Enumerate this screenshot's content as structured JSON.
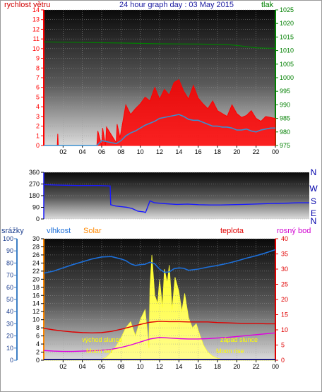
{
  "colors": {
    "wind": "#ff0000",
    "gust": "#ff0000",
    "wind_avg": "#3a8fd0",
    "pressure": "#008000",
    "direction": "#1a1aff",
    "compass": "#0000aa",
    "rain": "#3d7fc5",
    "humidity": "#1d6fd8",
    "solar": "#ffff33",
    "temperature": "#e00000",
    "dewpoint": "#e000e0",
    "axis_orange": "#ff8800",
    "grid": "#9a9a9a"
  },
  "chart_data": [
    {
      "type": "line",
      "title": "24 hour graph day : 03 May 2015",
      "left_label": "rychlost větru",
      "right_label": "tlak",
      "x_ticks": [
        "02",
        "04",
        "06",
        "08",
        "10",
        "12",
        "14",
        "16",
        "18",
        "20",
        "22",
        "00"
      ],
      "x_range_hours": [
        0,
        24
      ],
      "ylim_left": [
        0,
        14
      ],
      "left_ticks": [
        "0",
        "1",
        "2",
        "3",
        "4",
        "5",
        "6",
        "7",
        "8",
        "9",
        "10",
        "11",
        "12",
        "13",
        "14"
      ],
      "ylim_right": [
        975,
        1025
      ],
      "right_ticks": [
        "975",
        "980",
        "985",
        "990",
        "995",
        "1000",
        "1005",
        "1010",
        "1015",
        "1020",
        "1025"
      ],
      "series": [
        {
          "axis": "right",
          "x_hours": [
            0,
            4,
            8,
            12,
            16,
            19,
            20,
            22,
            24
          ],
          "values": [
            1013.2,
            1013.0,
            1012.8,
            1012.5,
            1012.4,
            1012.2,
            1011.9,
            1011.0,
            1010.8
          ]
        },
        {
          "axis": "left",
          "x_hours": [
            0,
            1.4,
            1.45,
            1.5,
            5.5,
            5.6,
            6.0,
            6.1,
            6.4,
            6.5,
            7.5,
            7.6,
            7.9,
            8.2,
            8.5,
            9,
            9.5,
            10,
            10.5,
            11,
            11.5,
            12,
            12.5,
            13,
            13.5,
            14,
            14.5,
            15,
            15.5,
            16,
            16.5,
            17,
            17.5,
            18,
            18.5,
            19,
            19.5,
            20,
            20.5,
            21,
            21.5,
            22,
            22.5,
            23,
            23.5,
            24
          ],
          "values": [
            0,
            0,
            1.2,
            0,
            0,
            1.5,
            0,
            1.8,
            0,
            1.9,
            0.3,
            2.2,
            0.8,
            2.5,
            4.2,
            3.2,
            3.8,
            4.3,
            5.0,
            4.6,
            6.0,
            4.8,
            5.8,
            5.2,
            6.5,
            6.8,
            5.6,
            4.8,
            6.2,
            4.9,
            4.3,
            3.8,
            4.6,
            3.6,
            3.3,
            3.0,
            4.2,
            3.3,
            2.9,
            3.1,
            3.6,
            2.8,
            2.5,
            3.0,
            2.9,
            2.8
          ]
        },
        {
          "axis": "left",
          "x_hours": [
            0,
            5.5,
            6.0,
            6.5,
            7.5,
            8.0,
            8.5,
            9,
            9.5,
            10,
            10.5,
            11,
            11.5,
            12,
            12.5,
            13,
            13.5,
            14,
            14.5,
            15,
            15.5,
            16,
            16.5,
            17,
            17.5,
            18,
            18.5,
            19,
            19.5,
            20,
            20.5,
            21,
            21.5,
            22,
            22.5,
            23,
            23.5,
            24
          ],
          "values": [
            0,
            0,
            0.5,
            0.4,
            0.2,
            0.5,
            1.0,
            1.3,
            1.5,
            1.8,
            2.1,
            2.3,
            2.5,
            2.8,
            2.9,
            3.0,
            3.1,
            3.2,
            3.0,
            2.7,
            2.6,
            2.6,
            2.4,
            2.2,
            2.0,
            2.0,
            1.9,
            1.9,
            1.8,
            1.6,
            1.6,
            1.7,
            1.5,
            1.4,
            1.6,
            1.7,
            1.8,
            1.8
          ]
        }
      ]
    },
    {
      "type": "line",
      "ylim": [
        0,
        360
      ],
      "y_ticks": [
        "0",
        "90",
        "180",
        "270",
        "360"
      ],
      "compass_labels": [
        "N",
        "W",
        "S",
        "E",
        "N"
      ],
      "series": [
        {
          "x_hours": [
            0,
            1,
            2,
            3,
            4,
            5,
            6.0,
            6.05,
            6.5,
            7,
            7.5,
            8,
            8.5,
            9,
            9.2,
            9.6,
            10,
            11,
            12,
            13,
            14,
            15,
            16,
            17,
            18,
            19,
            20,
            21,
            22,
            23,
            24
          ],
          "values": [
            265,
            262,
            260,
            258,
            258,
            258,
            255,
            110,
            100,
            95,
            90,
            80,
            60,
            55,
            50,
            140,
            125,
            118,
            112,
            115,
            110,
            108,
            108,
            110,
            112,
            115,
            118,
            120,
            122,
            125,
            125
          ]
        }
      ]
    },
    {
      "type": "area",
      "top_labels": [
        "srážky",
        "vlhkost",
        "Solar",
        "teplota",
        "rosný bod"
      ],
      "ylim_rain": [
        0,
        100
      ],
      "rain_ticks": [
        "0",
        "10",
        "20",
        "30",
        "40",
        "50",
        "60",
        "70",
        "80",
        "90",
        "100"
      ],
      "ylim_humidity": [
        0,
        30
      ],
      "humidity_ticks": [
        "0",
        "2",
        "4",
        "6",
        "8",
        "10",
        "12",
        "14",
        "16",
        "18",
        "20",
        "22",
        "24",
        "26",
        "28",
        "30"
      ],
      "ylim_temperature": [
        0,
        40
      ],
      "temperature_ticks": [
        "0",
        "5",
        "10",
        "15",
        "20",
        "25",
        "30",
        "35",
        "40"
      ],
      "annotations": [
        "východ slunce",
        "západ slunce",
        "Moon set",
        "Moon rise"
      ],
      "series": [
        {
          "x_hours": [
            0,
            1,
            2,
            3,
            4,
            5,
            6,
            7,
            8,
            8.5,
            9,
            9.5,
            10,
            10.5,
            11,
            11.5,
            12,
            12.5,
            13,
            13.5,
            14,
            14.5,
            15,
            16,
            17,
            18,
            19,
            20,
            21,
            22,
            23,
            24
          ],
          "values": [
            21.5,
            22.0,
            22.8,
            23.6,
            24.3,
            25.0,
            25.5,
            25.6,
            25.0,
            24.6,
            23.8,
            23.4,
            23.6,
            23.7,
            24.2,
            23.8,
            22.5,
            21.7,
            21.8,
            22.6,
            22.8,
            22.7,
            22.2,
            22.5,
            23.0,
            23.4,
            23.9,
            24.5,
            25.2,
            25.8,
            26.5,
            27.3
          ]
        },
        {
          "x_hours": [
            0,
            1,
            2,
            3,
            4,
            5,
            6,
            7,
            8,
            9,
            10,
            11,
            12,
            13,
            14,
            15,
            16,
            17,
            18,
            19,
            20,
            21,
            22,
            23,
            24
          ],
          "values": [
            10.5,
            10.0,
            9.6,
            9.3,
            9.1,
            9.0,
            9.1,
            9.5,
            10.2,
            11.0,
            11.8,
            12.5,
            12.8,
            12.7,
            12.7,
            12.6,
            12.6,
            12.6,
            12.4,
            12.3,
            12.2,
            12.1,
            12.1,
            12.0,
            12.0
          ]
        },
        {
          "x_hours": [
            0,
            1,
            2,
            3,
            4,
            5,
            6,
            7,
            8,
            9,
            10,
            11,
            12,
            13,
            14,
            15,
            16,
            17,
            18,
            19,
            20,
            21,
            22,
            23,
            24
          ],
          "values": [
            3.2,
            3.0,
            2.9,
            2.9,
            3.0,
            3.1,
            3.3,
            3.6,
            4.2,
            5.0,
            6.0,
            7.0,
            7.5,
            7.3,
            7.1,
            7.0,
            7.0,
            7.1,
            7.3,
            7.5,
            7.8,
            8.1,
            8.4,
            8.7,
            9.0
          ]
        },
        {
          "x_hours": [
            0,
            5.5,
            6.0,
            6.5,
            7.0,
            7.5,
            8.0,
            8.5,
            9.0,
            9.5,
            10.0,
            10.5,
            10.9,
            11.0,
            11.2,
            11.5,
            11.8,
            12.0,
            12.3,
            12.5,
            12.8,
            13.0,
            13.3,
            13.6,
            14.0,
            14.3,
            14.6,
            15.0,
            15.4,
            15.8,
            16.2,
            16.6,
            17.0,
            17.5,
            18.0,
            18.5,
            19.5,
            24
          ],
          "values": [
            0,
            0,
            0.2,
            0.8,
            2.0,
            3.5,
            5.5,
            8.0,
            9.5,
            6.0,
            10.0,
            12.5,
            3.0,
            18.0,
            26.0,
            16.0,
            14.0,
            20.0,
            13.0,
            22.5,
            19.0,
            23.5,
            12.5,
            20.5,
            17.0,
            12.0,
            16.5,
            10.5,
            8.0,
            9.0,
            6.0,
            3.5,
            2.0,
            1.0,
            0.5,
            0.2,
            0,
            0
          ]
        }
      ]
    }
  ]
}
